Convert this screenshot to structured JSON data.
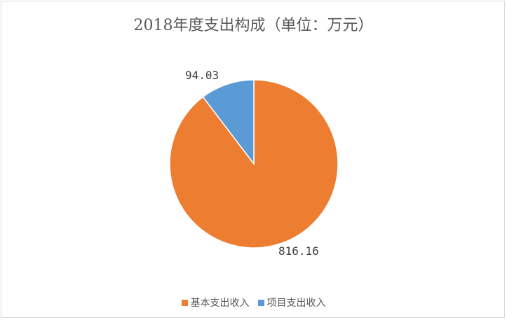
{
  "chart_data": {
    "type": "pie",
    "title": "2018年度支出构成（单位：万元）",
    "categories": [
      "基本支出收入",
      "项目支出收入"
    ],
    "values": [
      816.16,
      94.03
    ],
    "labels": [
      "816.16",
      "94.03"
    ],
    "colors": [
      "#ED7D31",
      "#5B9BD5"
    ],
    "legend_position": "bottom",
    "start_angle": "12 o'clock",
    "direction": "counterclockwise for first slice"
  }
}
